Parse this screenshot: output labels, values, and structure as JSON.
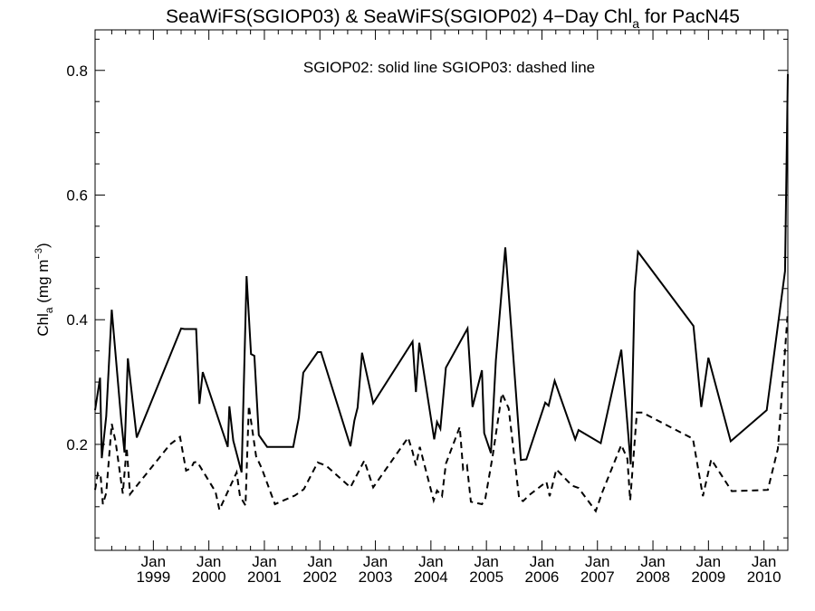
{
  "chart_data": {
    "type": "line",
    "title_main": "SeaWiFS(SGIOP03) & SeaWiFS(SGIOP02) 4−Day Chl",
    "title_sub": "a",
    "title_tail": " for PacN45",
    "ylabel_main": "Chl",
    "ylabel_sub": "a",
    "ylabel_units": " (mg m",
    "ylabel_sup": "−3",
    "ylabel_close": ")",
    "legend_text": "SGIOP02: solid line   SGIOP03: dashed line",
    "xlim": [
      1997.95,
      2010.43
    ],
    "ylim": [
      0.03,
      0.865
    ],
    "yticks": [
      {
        "value": 0.2,
        "label": "0.2"
      },
      {
        "value": 0.4,
        "label": "0.4"
      },
      {
        "value": 0.6,
        "label": "0.6"
      },
      {
        "value": 0.8,
        "label": "0.8"
      }
    ],
    "xticks": [
      {
        "value": 1999.0,
        "month": "Jan",
        "year": "1999"
      },
      {
        "value": 2000.0,
        "month": "Jan",
        "year": "2000"
      },
      {
        "value": 2001.0,
        "month": "Jan",
        "year": "2001"
      },
      {
        "value": 2002.0,
        "month": "Jan",
        "year": "2002"
      },
      {
        "value": 2003.0,
        "month": "Jan",
        "year": "2003"
      },
      {
        "value": 2004.0,
        "month": "Jan",
        "year": "2004"
      },
      {
        "value": 2005.0,
        "month": "Jan",
        "year": "2005"
      },
      {
        "value": 2006.0,
        "month": "Jan",
        "year": "2006"
      },
      {
        "value": 2007.0,
        "month": "Jan",
        "year": "2007"
      },
      {
        "value": 2008.0,
        "month": "Jan",
        "year": "2008"
      },
      {
        "value": 2009.0,
        "month": "Jan",
        "year": "2009"
      },
      {
        "value": 2010.0,
        "month": "Jan",
        "year": "2010"
      }
    ],
    "grid": false,
    "legend_position": "top-center",
    "series": [
      {
        "style": "solid",
        "x": [
          1997.95,
          1998.04,
          1998.07,
          1998.15,
          1998.25,
          1998.42,
          1998.48,
          1998.54,
          1998.7,
          1999.5,
          1999.56,
          1999.77,
          1999.83,
          1999.89,
          2000.34,
          2000.37,
          2000.44,
          2000.59,
          2000.68,
          2000.76,
          2000.82,
          2000.9,
          2001.05,
          2001.52,
          2001.62,
          2001.7,
          2001.96,
          2002.02,
          2002.55,
          2002.62,
          2002.68,
          2002.76,
          2002.96,
          2003.67,
          2003.73,
          2003.79,
          2004.06,
          2004.11,
          2004.17,
          2004.27,
          2004.66,
          2004.75,
          2004.92,
          2004.96,
          2005.08,
          2005.17,
          2005.34,
          2005.62,
          2005.72,
          2006.06,
          2006.12,
          2006.23,
          2006.6,
          2006.66,
          2007.06,
          2007.43,
          2007.6,
          2007.67,
          2007.73,
          2008.73,
          2008.87,
          2009.0,
          2009.4,
          2010.05,
          2010.38,
          2010.43
        ],
        "y": [
          0.255,
          0.307,
          0.178,
          0.245,
          0.416,
          0.24,
          0.187,
          0.338,
          0.211,
          0.386,
          0.385,
          0.385,
          0.265,
          0.316,
          0.196,
          0.261,
          0.206,
          0.155,
          0.47,
          0.345,
          0.342,
          0.215,
          0.196,
          0.196,
          0.243,
          0.315,
          0.348,
          0.348,
          0.197,
          0.238,
          0.259,
          0.347,
          0.266,
          0.365,
          0.284,
          0.363,
          0.208,
          0.236,
          0.225,
          0.323,
          0.386,
          0.26,
          0.319,
          0.218,
          0.186,
          0.335,
          0.516,
          0.175,
          0.176,
          0.267,
          0.262,
          0.302,
          0.208,
          0.223,
          0.202,
          0.352,
          0.168,
          0.445,
          0.509,
          0.39,
          0.26,
          0.339,
          0.205,
          0.255,
          0.478,
          0.794
        ]
      },
      {
        "style": "dashed",
        "x": [
          1997.95,
          1998.0,
          1998.05,
          1998.09,
          1998.15,
          1998.25,
          1998.32,
          1998.45,
          1998.52,
          1998.58,
          1998.66,
          1999.3,
          1999.48,
          1999.59,
          1999.68,
          1999.73,
          1999.79,
          2000.12,
          2000.19,
          2000.5,
          2000.56,
          2000.66,
          2000.72,
          2000.85,
          2000.95,
          2001.19,
          2001.55,
          2001.71,
          2001.96,
          2002.11,
          2002.55,
          2002.8,
          2002.96,
          2003.59,
          2003.67,
          2003.73,
          2003.8,
          2004.05,
          2004.11,
          2004.2,
          2004.27,
          2004.52,
          2004.58,
          2004.65,
          2004.72,
          2004.92,
          2004.98,
          2005.11,
          2005.28,
          2005.4,
          2005.59,
          2005.66,
          2005.79,
          2006.08,
          2006.14,
          2006.26,
          2006.54,
          2006.66,
          2006.97,
          2007.09,
          2007.43,
          2007.54,
          2007.59,
          2007.71,
          2007.81,
          2008.72,
          2008.9,
          2009.05,
          2009.42,
          2010.07,
          2010.25,
          2010.43
        ],
        "y": [
          0.127,
          0.154,
          0.15,
          0.104,
          0.122,
          0.233,
          0.204,
          0.121,
          0.195,
          0.12,
          0.129,
          0.2,
          0.212,
          0.158,
          0.162,
          0.171,
          0.172,
          0.124,
          0.095,
          0.155,
          0.117,
          0.102,
          0.262,
          0.181,
          0.162,
          0.104,
          0.118,
          0.128,
          0.171,
          0.166,
          0.131,
          0.174,
          0.131,
          0.211,
          0.188,
          0.166,
          0.196,
          0.11,
          0.126,
          0.117,
          0.169,
          0.228,
          0.16,
          0.166,
          0.108,
          0.104,
          0.113,
          0.18,
          0.282,
          0.258,
          0.113,
          0.109,
          0.12,
          0.14,
          0.117,
          0.16,
          0.134,
          0.13,
          0.093,
          0.124,
          0.199,
          0.177,
          0.11,
          0.251,
          0.251,
          0.209,
          0.117,
          0.176,
          0.125,
          0.127,
          0.193,
          0.413
        ]
      }
    ]
  }
}
